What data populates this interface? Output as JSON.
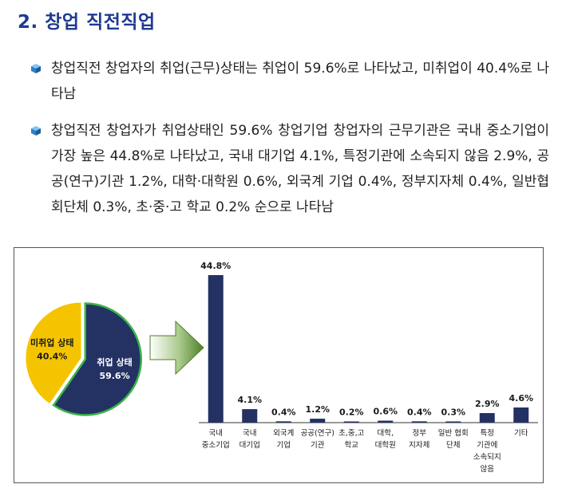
{
  "heading": "2. 창업 직전직업",
  "bullets": [
    "창업직전 창업자의 취업(근무)상태는 취업이 59.6%로 나타났고, 미취업이 40.4%로 나타남",
    "창업직전 창업자가 취업상태인 59.6% 창업기업 창업자의 근무기관은 국내 중소기업이 가장 높은 44.8%로 나타났고, 국내 대기업 4.1%, 특정기관에 소속되지 않음 2.9%, 공공(연구)기관 1.2%, 대학·대학원 0.6%, 외국계 기업 0.4%, 정부지자체 0.4%, 일반협회단체 0.3%, 초·중·고 학교 0.2% 순으로 나타남"
  ],
  "chart_data": [
    {
      "type": "pie",
      "slices": [
        {
          "label": "취업 상태",
          "value": 59.6,
          "value_label": "59.6%",
          "color": "#233263"
        },
        {
          "label": "미취업 상태",
          "value": 40.4,
          "value_label": "40.4%",
          "color": "#f5c400"
        }
      ]
    },
    {
      "type": "bar",
      "categories": [
        [
          "국내",
          "중소기업"
        ],
        [
          "국내",
          "대기업"
        ],
        [
          "외국계",
          "기업"
        ],
        [
          "공공(연구)",
          "기관"
        ],
        [
          "초,중,고",
          "학교"
        ],
        [
          "대학,",
          "대학원"
        ],
        [
          "정부",
          "지자체"
        ],
        [
          "일반 협회",
          "단체"
        ],
        [
          "특정",
          "기관에",
          "소속되지",
          "않음"
        ],
        [
          "기타"
        ]
      ],
      "values": [
        44.8,
        4.1,
        0.4,
        1.2,
        0.2,
        0.6,
        0.4,
        0.3,
        2.9,
        4.6
      ],
      "value_labels": [
        "44.8%",
        "4.1%",
        "0.4%",
        "1.2%",
        "0.2%",
        "0.6%",
        "0.4%",
        "0.3%",
        "2.9%",
        "4.6%"
      ],
      "color": "#233263",
      "ylim": [
        0,
        44.8
      ]
    }
  ]
}
